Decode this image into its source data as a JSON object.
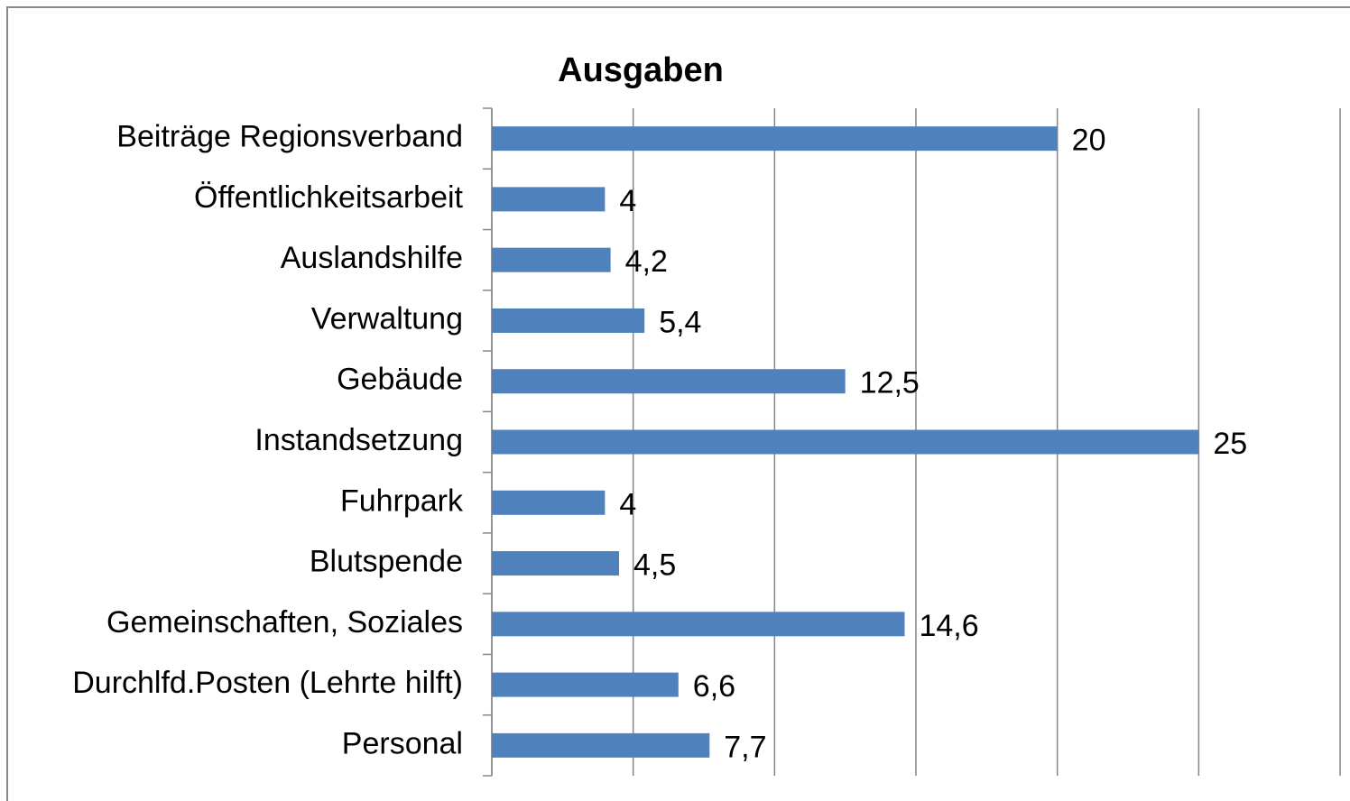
{
  "chart_data": {
    "type": "bar",
    "orientation": "horizontal",
    "title": "Ausgaben",
    "categories": [
      "Beiträge Regionsverband",
      "Öffentlichkeitsarbeit",
      "Auslandshilfe",
      "Verwaltung",
      "Gebäude",
      "Instandsetzung",
      "Fuhrpark",
      "Blutspende",
      "Gemeinschaften, Soziales",
      "Durchlfd.Posten (Lehrte hilft)",
      "Personal"
    ],
    "values": [
      20,
      4,
      4.2,
      5.4,
      12.5,
      25,
      4,
      4.5,
      14.6,
      6.6,
      7.7
    ],
    "value_labels": [
      "20",
      "4",
      "4,2",
      "5,4",
      "12,5",
      "25",
      "4",
      "4,5",
      "14,6",
      "6,6",
      "7,7"
    ],
    "color": "#4f81bd",
    "xlim": [
      0,
      30
    ],
    "xticks": [
      0,
      5,
      10,
      15,
      20,
      25,
      30
    ],
    "grid": true
  }
}
